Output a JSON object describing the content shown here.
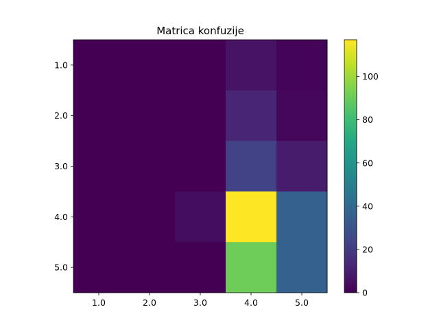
{
  "chart_data": {
    "type": "heatmap",
    "title": "Matrica konfuzije",
    "x_categories": [
      "1.0",
      "2.0",
      "3.0",
      "4.0",
      "5.0"
    ],
    "y_categories": [
      "1.0",
      "2.0",
      "3.0",
      "4.0",
      "5.0"
    ],
    "values": [
      [
        0,
        0,
        0,
        6,
        1
      ],
      [
        0,
        0,
        0,
        12,
        2
      ],
      [
        0,
        0,
        0,
        23,
        9
      ],
      [
        0,
        0,
        4,
        117,
        36
      ],
      [
        0,
        0,
        0,
        91,
        36
      ]
    ],
    "colorbar": {
      "ticks": [
        0,
        20,
        40,
        60,
        80,
        100
      ],
      "tick_labels": [
        "0",
        "20",
        "40",
        "60",
        "80",
        "100"
      ],
      "range": [
        0,
        117
      ]
    },
    "colormap": "viridis"
  }
}
